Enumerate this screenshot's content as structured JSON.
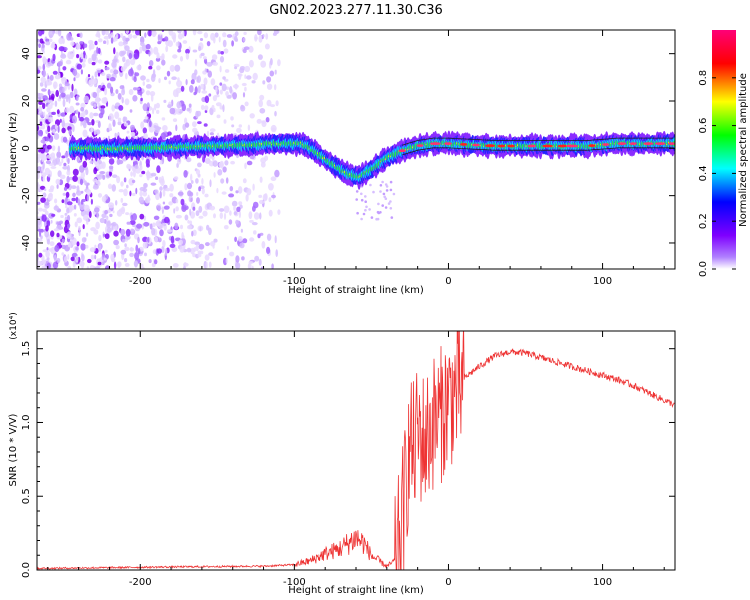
{
  "figure": {
    "title": "GN02.2023.277.11.30.C36"
  },
  "chart_data": [
    {
      "type": "heatmap",
      "xlabel": "Height of straight line (km)",
      "ylabel": "Frequency (Hz)",
      "xlim": [
        -267,
        147
      ],
      "ylim": [
        -51,
        50
      ],
      "xticks": [
        -200,
        -100,
        0,
        100
      ],
      "xtick_labels": [
        "-200",
        "-100",
        "0",
        "100"
      ],
      "yticks": [
        -40,
        -20,
        0,
        20,
        40
      ],
      "ytick_labels": [
        "-40",
        "-20",
        "0",
        "20",
        "40"
      ],
      "colorbar": {
        "label": "Normalized spectral amplitude",
        "range": [
          0,
          1
        ],
        "ticks": [
          0.0,
          0.2,
          0.4,
          0.6,
          0.8
        ],
        "tick_labels": [
          "0.0",
          "0.2",
          "0.4",
          "0.6",
          "0.8"
        ],
        "colors": [
          "#ffffff",
          "#7f00ff",
          "#0000ff",
          "#00ffff",
          "#00ff00",
          "#ffff00",
          "#ff0000",
          "#ff00aa"
        ]
      },
      "ridge": {
        "x": [
          -245,
          -200,
          -150,
          -110,
          -95,
          -85,
          -75,
          -65,
          -58,
          -50,
          -40,
          -30,
          -20,
          -10,
          0,
          30,
          60,
          90,
          110,
          147
        ],
        "y": [
          0,
          0,
          1,
          2,
          2,
          -2,
          -7,
          -11,
          -12,
          -9,
          -4,
          -1,
          1,
          2,
          2,
          1,
          1,
          1,
          2,
          2
        ]
      },
      "noise_region_x": [
        -267,
        -110
      ]
    },
    {
      "type": "line",
      "xlabel": "Height of straight line (km)",
      "ylabel": "SNR (10 * V/V)",
      "scale_label": "(x10⁴)",
      "xlim": [
        -267,
        147
      ],
      "ylim": [
        0,
        1.62
      ],
      "xticks": [
        -200,
        -100,
        0,
        100
      ],
      "xtick_labels": [
        "-200",
        "-100",
        "0",
        "100"
      ],
      "yticks": [
        0.0,
        0.5,
        1.0,
        1.5
      ],
      "ytick_labels": [
        "0.0",
        "0.5",
        "1.0",
        "1.5"
      ],
      "color": "#ee3333",
      "series": [
        {
          "x": [
            -267,
            -220,
            -180,
            -120,
            -100,
            -90,
            -80,
            -70,
            -60,
            -55,
            -50,
            -40,
            -35,
            -30,
            -27,
            -25,
            -22,
            -20,
            -18,
            -15,
            -10,
            -5,
            0,
            5,
            10,
            20,
            30,
            40,
            50,
            60,
            70,
            80,
            90,
            100,
            110,
            120,
            130,
            140,
            147
          ],
          "y": [
            0.005,
            0.01,
            0.015,
            0.02,
            0.03,
            0.05,
            0.09,
            0.12,
            0.18,
            0.15,
            0.08,
            0.02,
            0.05,
            0.4,
            0.7,
            0.9,
            0.85,
            1.0,
            0.95,
            0.92,
            1.05,
            1.1,
            1.2,
            1.25,
            1.3,
            1.38,
            1.45,
            1.48,
            1.47,
            1.44,
            1.41,
            1.38,
            1.35,
            1.32,
            1.29,
            1.25,
            1.2,
            1.15,
            1.12
          ]
        }
      ]
    }
  ]
}
